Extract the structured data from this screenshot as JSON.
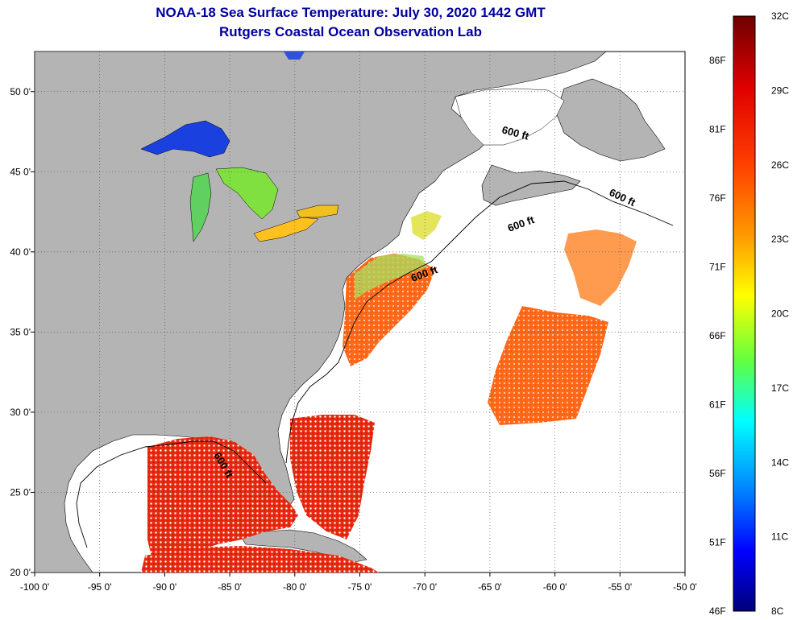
{
  "header": {
    "title": "NOAA-18 Sea Surface Temperature:  July 30, 2020 1442 GMT",
    "subtitle": "Rutgers Coastal Ocean Observation Lab"
  },
  "map": {
    "lon_range": [
      -100,
      -50
    ],
    "lat_range": [
      20,
      52.5
    ],
    "lon_ticks": [
      "-100 0'",
      "-95 0'",
      "-90 0'",
      "-85 0'",
      "-80 0'",
      "-75 0'",
      "-70 0'",
      "-65 0'",
      "-60 0'",
      "-55 0'",
      "-50 0'"
    ],
    "lat_ticks": [
      {
        "value": 20,
        "label": "20 0'"
      },
      {
        "value": 25,
        "label": "25 0'"
      },
      {
        "value": 30,
        "label": "30 0'"
      },
      {
        "value": 35,
        "label": "35 0'"
      },
      {
        "value": 40,
        "label": "40 0'"
      },
      {
        "value": 45,
        "label": "45 0'"
      },
      {
        "value": 50,
        "label": "50 0'"
      }
    ],
    "isobath_labels": [
      "600 ft",
      "600 ft",
      "600 ft",
      "600 ft",
      "600 ft"
    ],
    "colors": {
      "land": "#b4b4b4",
      "ocean_no_data": "#ffffff",
      "grid": "#555555"
    }
  },
  "colorbar": {
    "celsius_labels": [
      "32C",
      "29C",
      "26C",
      "23C",
      "20C",
      "17C",
      "14C",
      "11C",
      "8C"
    ],
    "fahrenheit_labels": [
      "86F",
      "81F",
      "76F",
      "71F",
      "66F",
      "61F",
      "56F",
      "51F",
      "46F"
    ],
    "range_c": [
      8,
      32
    ],
    "colors": [
      "#7a0000",
      "#e60000",
      "#ff5a00",
      "#ffa500",
      "#ffff00",
      "#7fff00",
      "#00ff7f",
      "#00ffff",
      "#0080ff",
      "#0000ff",
      "#00008b"
    ]
  }
}
